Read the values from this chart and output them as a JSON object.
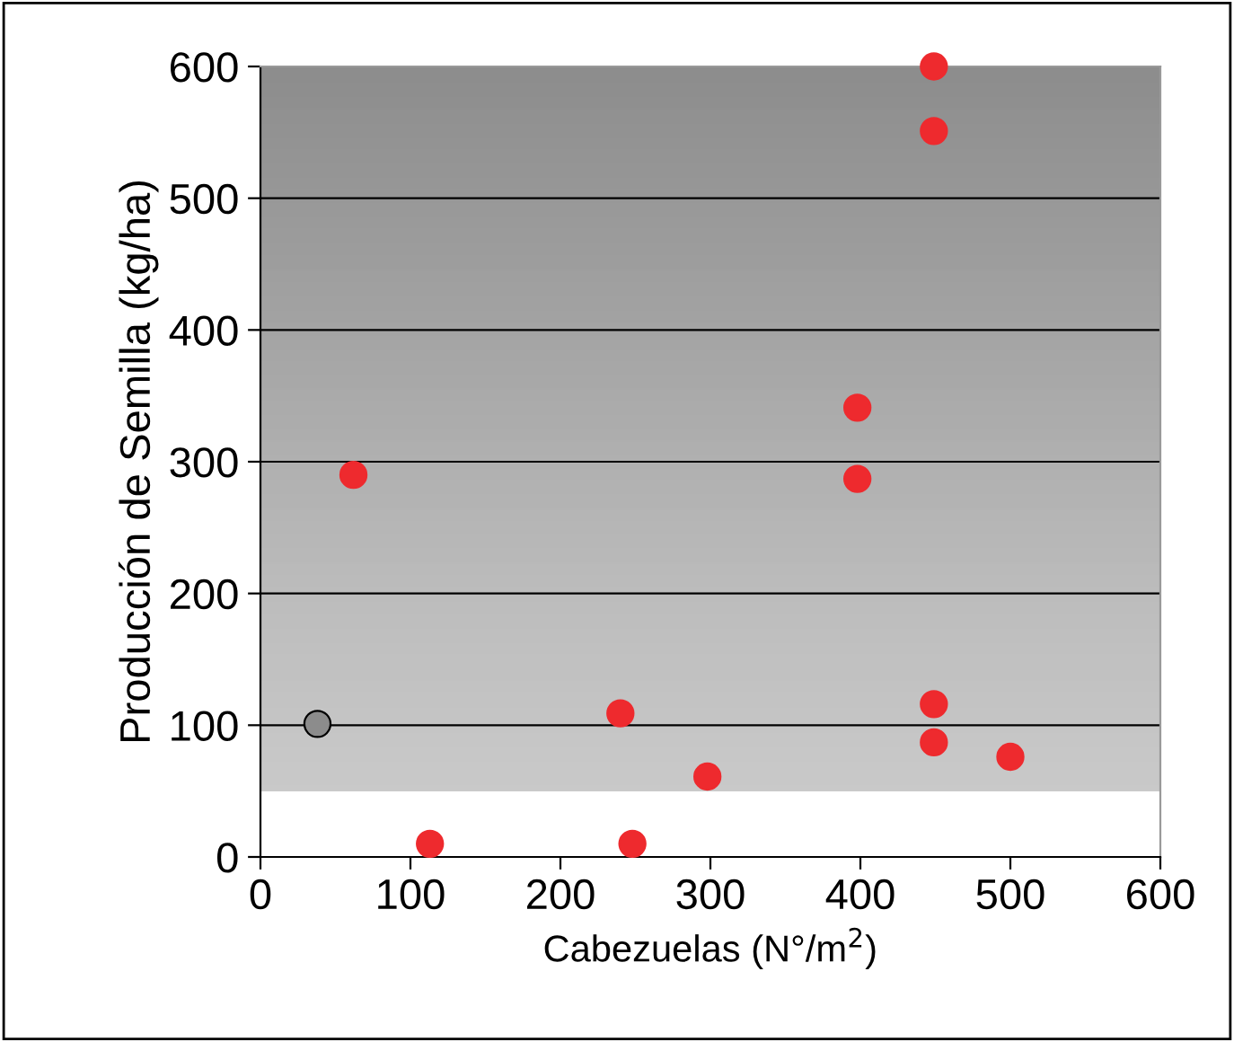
{
  "chart_data": {
    "type": "scatter",
    "xlabel": "Cabezuelas (N°/m$^{2}$)",
    "ylabel": "Producción de Semilla (kg/ha)",
    "series": [
      {
        "color": "#ee2a2e",
        "x": [
          62,
          113,
          240,
          248,
          298,
          398,
          398,
          449,
          449,
          449,
          449,
          500
        ],
        "values": [
          290,
          10,
          109,
          10,
          61,
          341,
          287,
          600,
          551,
          116,
          87,
          76
        ]
      },
      {
        "color": "#8c8c8c",
        "x": [
          38
        ],
        "values": [
          101
        ]
      }
    ],
    "xlim": [
      0,
      600
    ],
    "xticks": [
      0,
      100,
      200,
      300,
      400,
      500,
      600
    ],
    "ylim": [
      0,
      600
    ],
    "yticks": [
      0,
      100,
      200,
      300,
      400,
      500,
      600
    ],
    "grid": "y",
    "marker": "circle",
    "legend": false
  }
}
